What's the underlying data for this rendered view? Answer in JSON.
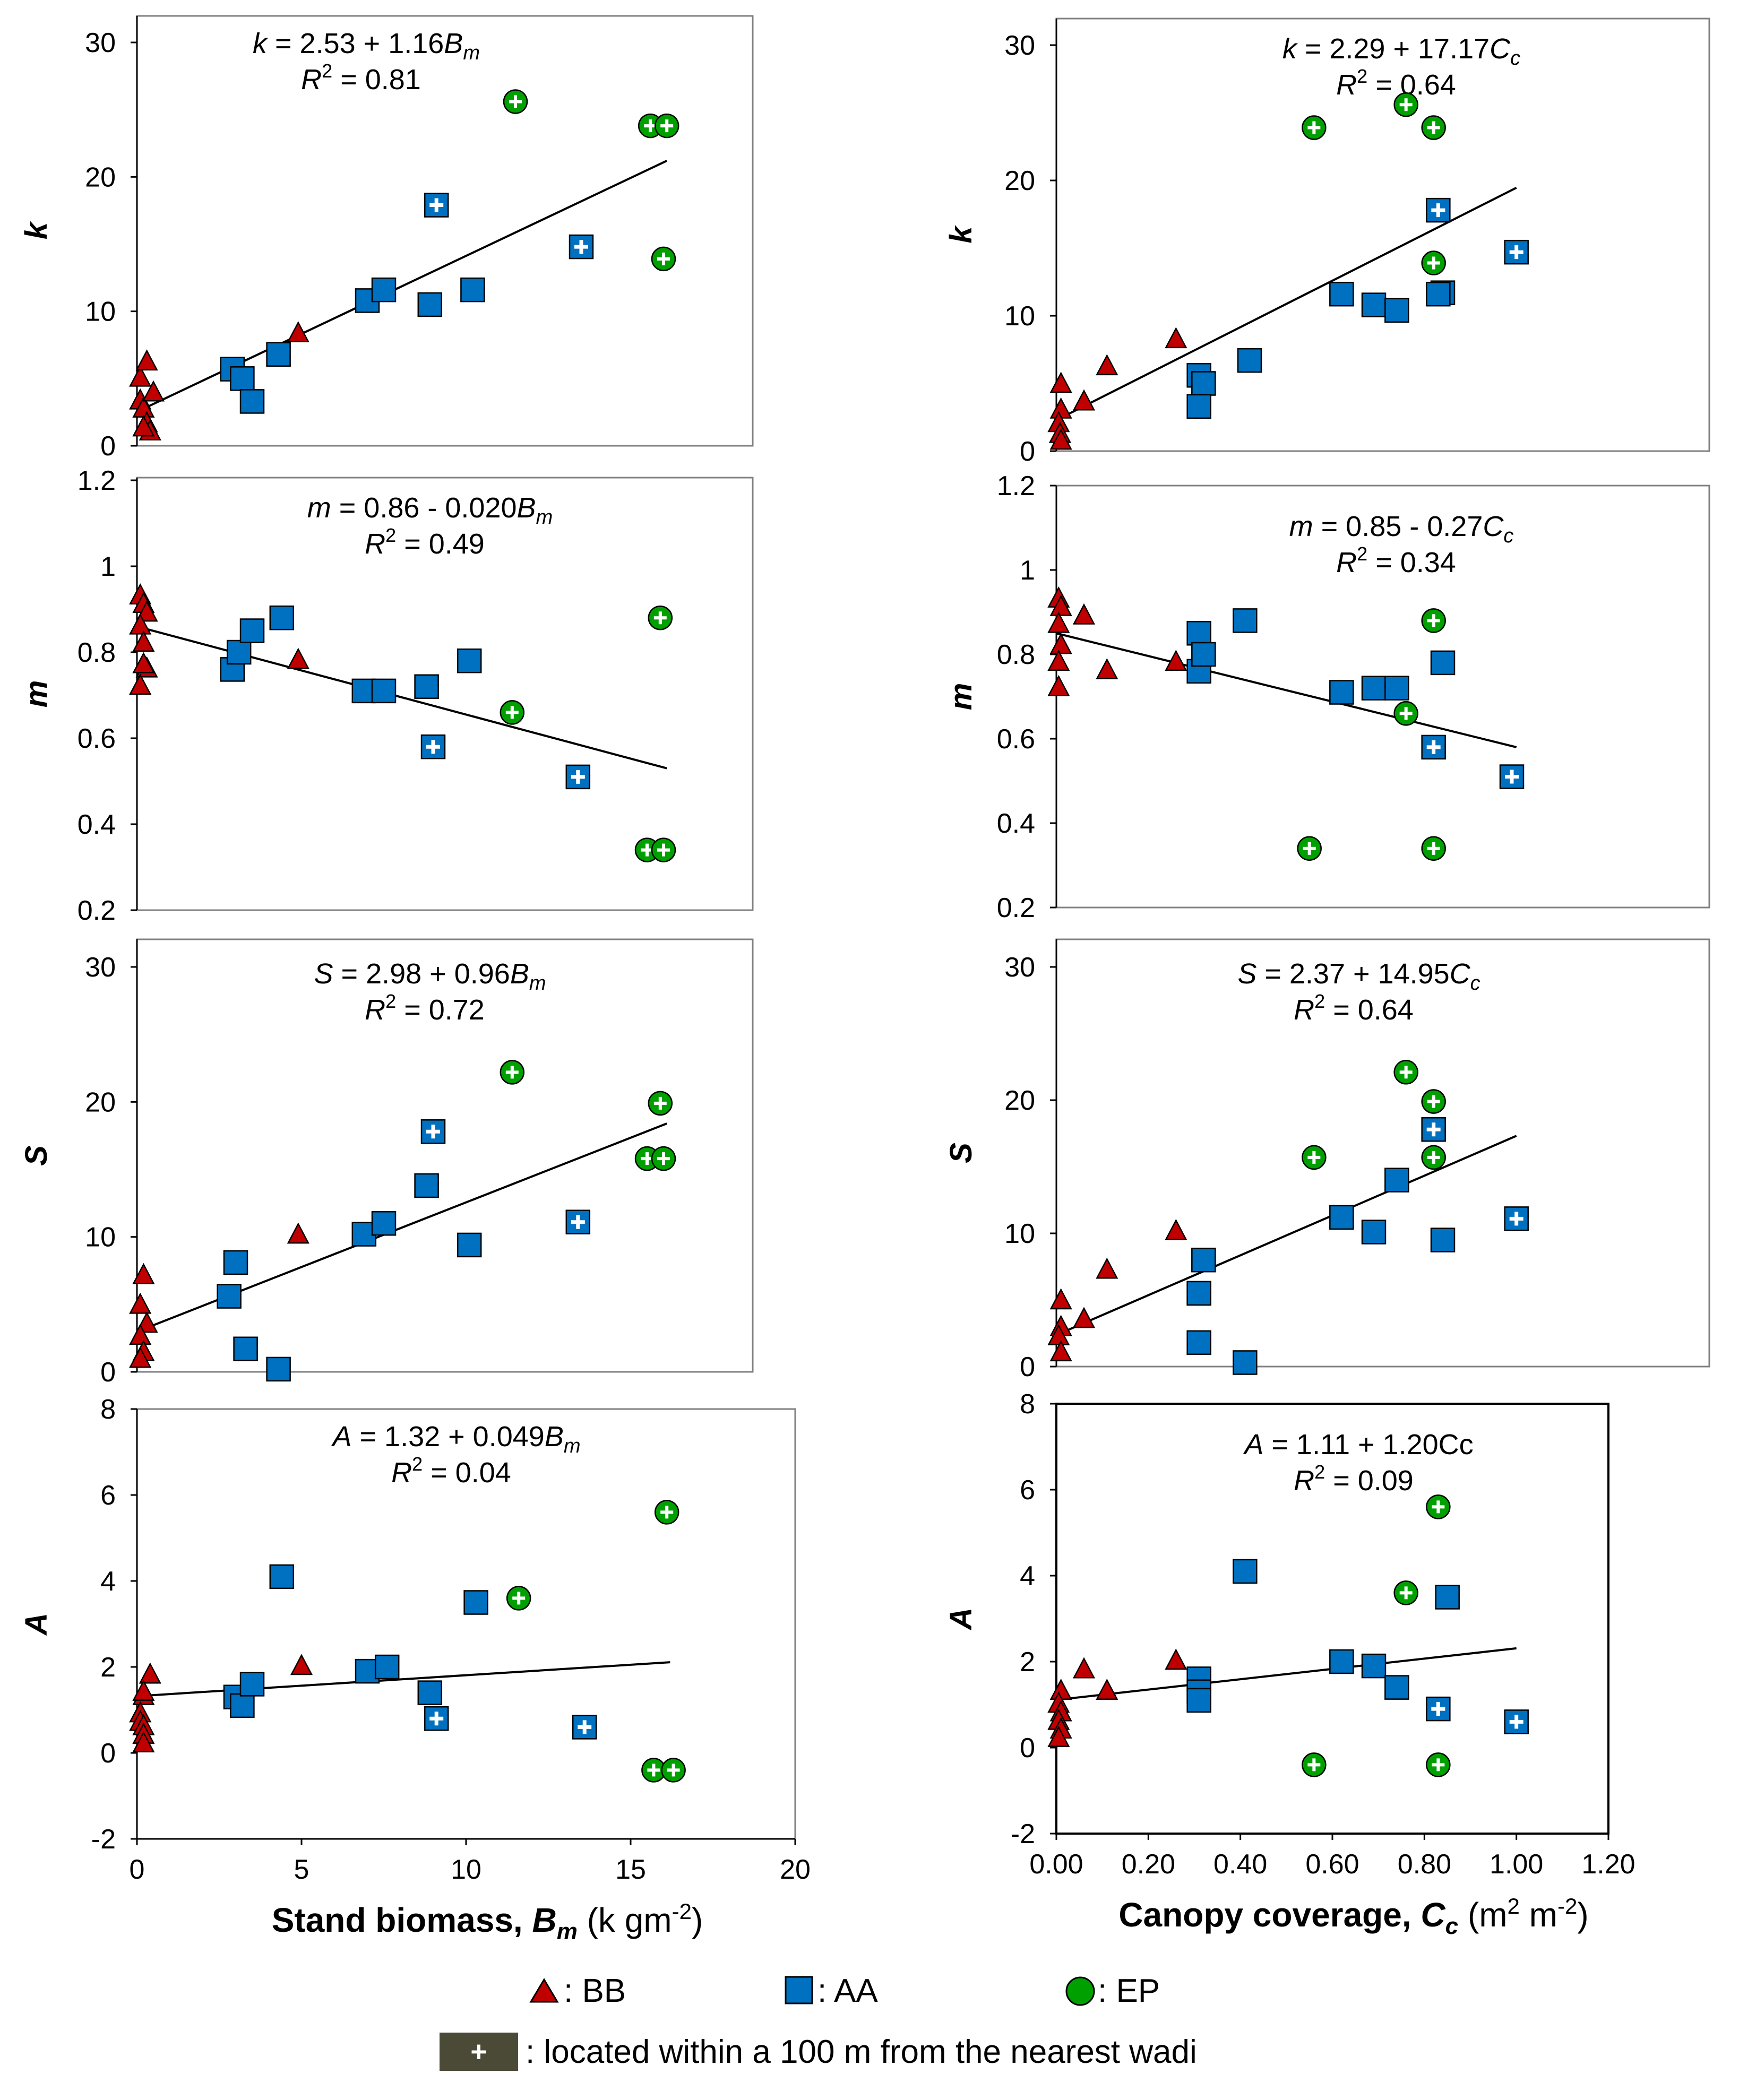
{
  "chart_data": [
    {
      "type": "scatter",
      "id": "k-vs-Bm",
      "ylabel": "k",
      "xlabel": "",
      "xlim": [
        0,
        20
      ],
      "ylim": [
        0,
        30
      ],
      "xticks": [],
      "yticks": [
        "0",
        "10",
        "20",
        "30"
      ],
      "equation": {
        "lhs": "k",
        "rhs": " = 2.53 + 1.16",
        "var": "B",
        "sub": "m"
      },
      "r2": " = 0.81",
      "fit": {
        "x": [
          0,
          16.1
        ],
        "y": [
          2.53,
          21.2
        ]
      },
      "series": [
        {
          "name": "BB",
          "x": [
            0.1,
            0.3,
            0.1,
            0.2,
            0.3,
            0.5,
            0.4,
            0.2,
            4.9
          ],
          "y": [
            5,
            6.2,
            3.3,
            2.7,
            1.6,
            3.9,
            1.0,
            1.3,
            8.3
          ]
        },
        {
          "name": "AA",
          "x": [
            2.9,
            3.2,
            3.5,
            4.3,
            7.0,
            7.5,
            8.9,
            10.2
          ],
          "y": [
            5.7,
            5.0,
            3.3,
            6.8,
            10.8,
            11.6,
            10.5,
            11.6
          ]
        },
        {
          "name": "AA near wadi",
          "x": [
            9.1,
            13.5
          ],
          "y": [
            17.9,
            14.8
          ]
        },
        {
          "name": "EP near wadi",
          "x": [
            11.5,
            15.6,
            16.1,
            16.0
          ],
          "y": [
            25.6,
            23.8,
            23.8,
            13.9
          ]
        }
      ]
    },
    {
      "type": "scatter",
      "id": "k-vs-Cc",
      "ylabel": "k",
      "xlabel": "",
      "xlim": [
        0,
        1.2
      ],
      "ylim": [
        0,
        30
      ],
      "xticks": [],
      "yticks": [
        "0",
        "10",
        "20",
        "30"
      ],
      "equation": {
        "lhs": "k",
        "rhs": " = 2.29 + 17.17",
        "var": "C",
        "sub": "c"
      },
      "r2": " = 0.64",
      "fit": {
        "x": [
          0,
          1.0
        ],
        "y": [
          2.29,
          19.46
        ]
      },
      "series": [
        {
          "name": "BB",
          "x": [
            0.01,
            0.01,
            0.005,
            0.008,
            0.01,
            0.06,
            0.11,
            0.26
          ],
          "y": [
            4.9,
            3.0,
            2.0,
            1.2,
            0.7,
            3.6,
            6.2,
            8.2
          ]
        },
        {
          "name": "AA",
          "x": [
            0.31,
            0.32,
            0.31,
            0.42,
            0.62,
            0.69,
            0.74,
            0.84,
            0.83
          ],
          "y": [
            5.6,
            5.0,
            3.3,
            6.7,
            11.6,
            10.8,
            10.4,
            11.7,
            11.6
          ]
        },
        {
          "name": "AA near wadi",
          "x": [
            0.83,
            1.0
          ],
          "y": [
            17.8,
            14.7
          ]
        },
        {
          "name": "EP near wadi",
          "x": [
            0.56,
            0.76,
            0.82,
            0.82
          ],
          "y": [
            23.9,
            25.6,
            23.9,
            13.9
          ]
        }
      ]
    },
    {
      "type": "scatter",
      "id": "m-vs-Bm",
      "ylabel": "m",
      "xlabel": "",
      "xlim": [
        0,
        20
      ],
      "ylim": [
        0.2,
        1.2
      ],
      "xticks": [],
      "yticks": [
        "0.2",
        "0.4",
        "0.6",
        "0.8",
        "1",
        "1.2"
      ],
      "equation": {
        "lhs": "m",
        "rhs": " = 0.86 - 0.020",
        "var": "B",
        "sub": "m"
      },
      "r2": " = 0.49",
      "fit": {
        "x": [
          0,
          16.1
        ],
        "y": [
          0.86,
          0.53
        ]
      },
      "series": [
        {
          "name": "BB",
          "x": [
            0.1,
            0.2,
            0.3,
            0.1,
            0.2,
            0.3,
            0.2,
            0.1,
            4.9
          ],
          "y": [
            0.93,
            0.91,
            0.89,
            0.86,
            0.82,
            0.76,
            0.77,
            0.72,
            0.78
          ]
        },
        {
          "name": "AA",
          "x": [
            2.9,
            3.1,
            3.5,
            4.4,
            6.9,
            7.5,
            8.8,
            10.1
          ],
          "y": [
            0.76,
            0.8,
            0.85,
            0.88,
            0.71,
            0.71,
            0.72,
            0.78
          ]
        },
        {
          "name": "AA near wadi",
          "x": [
            9.0,
            13.4
          ],
          "y": [
            0.58,
            0.51
          ]
        },
        {
          "name": "EP near wadi",
          "x": [
            11.4,
            15.9,
            15.5,
            16.0
          ],
          "y": [
            0.66,
            0.88,
            0.34,
            0.34
          ]
        }
      ]
    },
    {
      "type": "scatter",
      "id": "m-vs-Cc",
      "ylabel": "m",
      "xlabel": "",
      "xlim": [
        0,
        1.2
      ],
      "ylim": [
        0.2,
        1.2
      ],
      "xticks": [],
      "yticks": [
        "0.2",
        "0.4",
        "0.6",
        "0.8",
        "1",
        "1.2"
      ],
      "equation": {
        "lhs": "m",
        "rhs": " =  0.85 - 0.27",
        "var": "C",
        "sub": "c"
      },
      "r2": " = 0.34",
      "fit": {
        "x": [
          0,
          1.0
        ],
        "y": [
          0.85,
          0.58
        ]
      },
      "series": [
        {
          "name": "BB",
          "x": [
            0.005,
            0.01,
            0.005,
            0.01,
            0.005,
            0.005,
            0.06,
            0.11,
            0.26
          ],
          "y": [
            0.93,
            0.91,
            0.87,
            0.82,
            0.78,
            0.72,
            0.89,
            0.76,
            0.78
          ]
        },
        {
          "name": "AA",
          "x": [
            0.31,
            0.31,
            0.32,
            0.41,
            0.62,
            0.69,
            0.74,
            0.84
          ],
          "y": [
            0.85,
            0.76,
            0.8,
            0.88,
            0.71,
            0.72,
            0.72,
            0.78
          ]
        },
        {
          "name": "AA near wadi",
          "x": [
            0.82,
            0.99
          ],
          "y": [
            0.58,
            0.51
          ]
        },
        {
          "name": "EP near wadi",
          "x": [
            0.82,
            0.76,
            0.55,
            0.82
          ],
          "y": [
            0.88,
            0.66,
            0.34,
            0.34
          ]
        }
      ]
    },
    {
      "type": "scatter",
      "id": "S-vs-Bm",
      "ylabel": "S",
      "xlabel": "",
      "xlim": [
        0,
        20
      ],
      "ylim": [
        0,
        30
      ],
      "xticks": [],
      "yticks": [
        "0",
        "10",
        "20",
        "30"
      ],
      "equation": {
        "lhs": "S",
        "rhs": " = 2.98 + 0.96",
        "var": "B",
        "sub": "m"
      },
      "r2": " = 0.72",
      "fit": {
        "x": [
          0,
          16.1
        ],
        "y": [
          2.98,
          18.4
        ]
      },
      "series": [
        {
          "name": "BB",
          "x": [
            0.2,
            0.1,
            0.3,
            0.1,
            0.2,
            0.1,
            4.9
          ],
          "y": [
            7.1,
            4.9,
            3.5,
            2.6,
            1.4,
            0.9,
            10.1
          ]
        },
        {
          "name": "AA",
          "x": [
            2.8,
            3.0,
            3.3,
            4.3,
            6.9,
            7.5,
            8.8,
            10.1
          ],
          "y": [
            5.6,
            8.1,
            1.7,
            0.2,
            10.2,
            11.0,
            13.8,
            9.4
          ]
        },
        {
          "name": "AA near wadi",
          "x": [
            9.0,
            13.4
          ],
          "y": [
            17.8,
            11.1
          ]
        },
        {
          "name": "EP near wadi",
          "x": [
            11.4,
            15.9,
            15.5,
            16.0
          ],
          "y": [
            22.2,
            19.9,
            15.8,
            15.8
          ]
        }
      ]
    },
    {
      "type": "scatter",
      "id": "S-vs-Cc",
      "ylabel": "S",
      "xlabel": "",
      "xlim": [
        0,
        1.2
      ],
      "ylim": [
        0,
        30
      ],
      "xticks": [],
      "yticks": [
        "0",
        "10",
        "20",
        "30"
      ],
      "equation": {
        "lhs": "S",
        "rhs": " = 2.37 + 14.95",
        "var": "C",
        "sub": "c"
      },
      "r2": " = 0.64",
      "fit": {
        "x": [
          0,
          1.0
        ],
        "y": [
          2.37,
          17.32
        ]
      },
      "series": [
        {
          "name": "BB",
          "x": [
            0.01,
            0.01,
            0.005,
            0.01,
            0.06,
            0.11,
            0.26
          ],
          "y": [
            4.9,
            2.9,
            2.2,
            1.0,
            3.5,
            7.2,
            10.1
          ]
        },
        {
          "name": "AA",
          "x": [
            0.31,
            0.31,
            0.31,
            0.32,
            0.41,
            0.62,
            0.69,
            0.74,
            0.84
          ],
          "y": [
            5.5,
            1.8,
            5.5,
            8.0,
            0.3,
            11.2,
            10.1,
            14.0,
            9.5
          ]
        },
        {
          "name": "AA near wadi",
          "x": [
            0.82,
            1.0
          ],
          "y": [
            17.8,
            11.1
          ]
        },
        {
          "name": "EP near wadi",
          "x": [
            0.56,
            0.76,
            0.82,
            0.82
          ],
          "y": [
            15.7,
            22.1,
            19.9,
            15.7
          ]
        }
      ]
    },
    {
      "type": "scatter",
      "id": "A-vs-Bm",
      "ylabel": "A",
      "xlabel": "Stand biomass, ",
      "xlabel_var": "B",
      "xlabel_sub": "m",
      "xlabel_unit": "  (k gm",
      "xlabel_sup": "-2",
      "xlabel_close": ")",
      "xlim": [
        0,
        20
      ],
      "ylim": [
        -2,
        8
      ],
      "xticks": [
        "0",
        "5",
        "10",
        "15",
        "20"
      ],
      "yticks": [
        "-2",
        "0",
        "2",
        "4",
        "6",
        "8"
      ],
      "equation": {
        "lhs": "A",
        "rhs": " = 1.32 + 0.049",
        "var": "B",
        "sub": "m"
      },
      "r2": " = 0.04",
      "fit": {
        "x": [
          0,
          16.2
        ],
        "y": [
          1.32,
          2.11
        ]
      },
      "series": [
        {
          "name": "BB",
          "x": [
            0.2,
            0.4,
            0.2,
            0.1,
            0.1,
            0.2,
            0.2,
            0.2,
            5.0
          ],
          "y": [
            1.3,
            1.8,
            1.4,
            0.9,
            0.7,
            0.6,
            0.4,
            0.2,
            2.0
          ]
        },
        {
          "name": "AA",
          "x": [
            3.0,
            3.2,
            3.5,
            4.4,
            7.0,
            7.6,
            8.9,
            10.3
          ],
          "y": [
            1.3,
            1.1,
            1.6,
            4.1,
            1.9,
            2.0,
            1.4,
            3.5
          ]
        },
        {
          "name": "AA near wadi",
          "x": [
            9.1,
            13.6
          ],
          "y": [
            0.8,
            0.6
          ]
        },
        {
          "name": "EP near wadi",
          "x": [
            11.6,
            16.1,
            15.7,
            16.3
          ],
          "y": [
            3.6,
            5.6,
            -0.4,
            -0.4
          ]
        }
      ]
    },
    {
      "type": "scatter",
      "id": "A-vs-Cc",
      "ylabel": "A",
      "xlabel": "Canopy coverage, ",
      "xlabel_var": "C",
      "xlabel_sub": "c",
      "xlabel_unit": " (m",
      "xlabel_sup": "2",
      "xlabel_unit2": " m",
      "xlabel_sup2": "-2",
      "xlabel_close": ")",
      "xlim": [
        0,
        1.2
      ],
      "ylim": [
        -2,
        8
      ],
      "xticks": [
        "0.00",
        "0.20",
        "0.40",
        "0.60",
        "0.80",
        "1.00",
        "1.20"
      ],
      "yticks": [
        "-2",
        "0",
        "2",
        "4",
        "6",
        "8"
      ],
      "equation": {
        "lhs": "A",
        "rhs": " = 1.11 + 1.20Cc",
        "var": "",
        "sub": ""
      },
      "r2": " = 0.09",
      "fit": {
        "x": [
          0,
          1.0
        ],
        "y": [
          1.11,
          2.31
        ]
      },
      "series": [
        {
          "name": "BB",
          "x": [
            0.01,
            0.005,
            0.01,
            0.005,
            0.01,
            0.005,
            0.06,
            0.11,
            0.26
          ],
          "y": [
            1.3,
            1.0,
            0.8,
            0.6,
            0.4,
            0.2,
            1.8,
            1.3,
            2.0
          ]
        },
        {
          "name": "AA",
          "x": [
            0.31,
            0.31,
            0.31,
            0.41,
            0.62,
            0.69,
            0.74,
            0.85
          ],
          "y": [
            1.6,
            1.3,
            1.1,
            4.1,
            2.0,
            1.9,
            1.4,
            3.5
          ]
        },
        {
          "name": "AA near wadi",
          "x": [
            0.83,
            1.0
          ],
          "y": [
            0.9,
            0.6
          ]
        },
        {
          "name": "EP near wadi",
          "x": [
            0.83,
            0.76,
            0.56,
            0.83
          ],
          "y": [
            5.6,
            3.6,
            -0.4,
            -0.4
          ]
        }
      ]
    }
  ],
  "r2_label": "R",
  "r2_sup": "2",
  "legend": {
    "bb": ": BB",
    "aa": ": AA",
    "ep": ": EP",
    "wadi_symbol": "+",
    "wadi": ": located within a 100 m from the nearest wadi"
  },
  "colors": {
    "bb": "#c00000",
    "aa": "#0070c0",
    "ep": "#00a000",
    "wadi_box": "#4a4a36",
    "frame": "#808080"
  }
}
